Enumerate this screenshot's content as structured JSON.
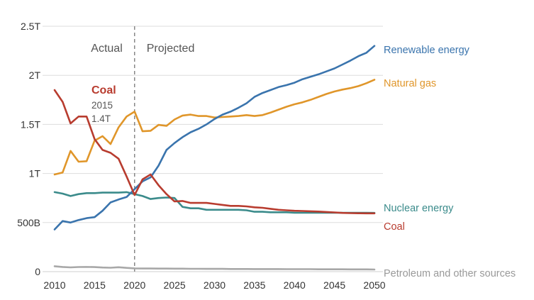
{
  "chart_data": {
    "type": "line",
    "title": "",
    "xlabel": "",
    "ylabel": "",
    "xlim": [
      2010,
      2050
    ],
    "ylim": [
      0,
      2500000000000
    ],
    "x_ticks": [
      2010,
      2015,
      2020,
      2025,
      2030,
      2035,
      2040,
      2045,
      2050
    ],
    "x_tick_labels": [
      "2010",
      "2015",
      "2020",
      "2025",
      "2030",
      "2035",
      "2040",
      "2045",
      "2050"
    ],
    "y_ticks": [
      0,
      500000000000,
      1000000000000,
      1500000000000,
      2000000000000,
      2500000000000
    ],
    "y_tick_labels": [
      "0",
      "500B",
      "1T",
      "1.5T",
      "2T",
      "2.5T"
    ],
    "grid": "horizontal",
    "legend": "direct labels at line ends (right)",
    "divider": {
      "x": 2020,
      "left_label": "Actual",
      "right_label": "Projected"
    },
    "annotation": {
      "series": "Coal",
      "title": "Coal",
      "year": "2015",
      "value": "1.4T",
      "x": 2015
    },
    "series": [
      {
        "name": "Renewable energy",
        "color": "#3a74ad",
        "x": [
          2010,
          2011,
          2012,
          2013,
          2014,
          2015,
          2016,
          2017,
          2018,
          2019,
          2020,
          2021,
          2022,
          2023,
          2024,
          2025,
          2026,
          2027,
          2028,
          2029,
          2030,
          2031,
          2032,
          2033,
          2034,
          2035,
          2036,
          2037,
          2038,
          2039,
          2040,
          2041,
          2042,
          2043,
          2044,
          2045,
          2046,
          2047,
          2048,
          2049,
          2050
        ],
        "values": [
          430000000000,
          515000000000,
          500000000000,
          525000000000,
          545000000000,
          555000000000,
          620000000000,
          705000000000,
          735000000000,
          760000000000,
          840000000000,
          920000000000,
          960000000000,
          1080000000000,
          1240000000000,
          1310000000000,
          1370000000000,
          1420000000000,
          1455000000000,
          1500000000000,
          1555000000000,
          1600000000000,
          1630000000000,
          1670000000000,
          1715000000000,
          1780000000000,
          1820000000000,
          1850000000000,
          1880000000000,
          1900000000000,
          1925000000000,
          1960000000000,
          1985000000000,
          2010000000000,
          2040000000000,
          2070000000000,
          2110000000000,
          2150000000000,
          2195000000000,
          2230000000000,
          2300000000000
        ]
      },
      {
        "name": "Natural gas",
        "color": "#e0962a",
        "x": [
          2010,
          2011,
          2012,
          2013,
          2014,
          2015,
          2016,
          2017,
          2018,
          2019,
          2020,
          2021,
          2022,
          2023,
          2024,
          2025,
          2026,
          2027,
          2028,
          2029,
          2030,
          2031,
          2032,
          2033,
          2034,
          2035,
          2036,
          2037,
          2038,
          2039,
          2040,
          2041,
          2042,
          2043,
          2044,
          2045,
          2046,
          2047,
          2048,
          2049,
          2050
        ],
        "values": [
          990000000000,
          1010000000000,
          1230000000000,
          1120000000000,
          1125000000000,
          1335000000000,
          1380000000000,
          1300000000000,
          1470000000000,
          1580000000000,
          1630000000000,
          1430000000000,
          1435000000000,
          1495000000000,
          1485000000000,
          1550000000000,
          1590000000000,
          1600000000000,
          1585000000000,
          1585000000000,
          1570000000000,
          1575000000000,
          1580000000000,
          1585000000000,
          1595000000000,
          1585000000000,
          1595000000000,
          1620000000000,
          1650000000000,
          1680000000000,
          1705000000000,
          1725000000000,
          1750000000000,
          1780000000000,
          1810000000000,
          1835000000000,
          1855000000000,
          1870000000000,
          1890000000000,
          1920000000000,
          1955000000000
        ]
      },
      {
        "name": "Nuclear energy",
        "color": "#3b8b8b",
        "x": [
          2010,
          2011,
          2012,
          2013,
          2014,
          2015,
          2016,
          2017,
          2018,
          2019,
          2020,
          2021,
          2022,
          2023,
          2024,
          2025,
          2026,
          2027,
          2028,
          2029,
          2030,
          2031,
          2032,
          2033,
          2034,
          2035,
          2036,
          2037,
          2038,
          2039,
          2040,
          2041,
          2042,
          2043,
          2044,
          2045,
          2046,
          2047,
          2048,
          2049,
          2050
        ],
        "values": [
          810000000000,
          795000000000,
          770000000000,
          790000000000,
          800000000000,
          800000000000,
          805000000000,
          805000000000,
          805000000000,
          810000000000,
          790000000000,
          770000000000,
          740000000000,
          750000000000,
          755000000000,
          750000000000,
          660000000000,
          645000000000,
          645000000000,
          630000000000,
          630000000000,
          630000000000,
          630000000000,
          630000000000,
          625000000000,
          610000000000,
          610000000000,
          605000000000,
          605000000000,
          605000000000,
          600000000000,
          600000000000,
          600000000000,
          600000000000,
          600000000000,
          600000000000,
          600000000000,
          600000000000,
          600000000000,
          600000000000,
          598000000000
        ]
      },
      {
        "name": "Coal",
        "color": "#b83c2f",
        "x": [
          2010,
          2011,
          2012,
          2013,
          2014,
          2015,
          2016,
          2017,
          2018,
          2019,
          2020,
          2021,
          2022,
          2023,
          2024,
          2025,
          2026,
          2027,
          2028,
          2029,
          2030,
          2031,
          2032,
          2033,
          2034,
          2035,
          2036,
          2037,
          2038,
          2039,
          2040,
          2041,
          2042,
          2043,
          2044,
          2045,
          2046,
          2047,
          2048,
          2049,
          2050
        ],
        "values": [
          1850000000000,
          1730000000000,
          1510000000000,
          1580000000000,
          1580000000000,
          1350000000000,
          1240000000000,
          1210000000000,
          1150000000000,
          970000000000,
          780000000000,
          940000000000,
          990000000000,
          880000000000,
          790000000000,
          715000000000,
          720000000000,
          700000000000,
          700000000000,
          700000000000,
          690000000000,
          680000000000,
          670000000000,
          670000000000,
          665000000000,
          655000000000,
          650000000000,
          640000000000,
          630000000000,
          625000000000,
          620000000000,
          618000000000,
          615000000000,
          612000000000,
          608000000000,
          603000000000,
          598000000000,
          596000000000,
          595000000000,
          594000000000,
          594000000000
        ]
      },
      {
        "name": "Petroleum and other sources",
        "color": "#a8a8a8",
        "x": [
          2010,
          2011,
          2012,
          2013,
          2014,
          2015,
          2016,
          2017,
          2018,
          2019,
          2020,
          2021,
          2022,
          2023,
          2024,
          2025,
          2026,
          2027,
          2028,
          2029,
          2030,
          2031,
          2032,
          2033,
          2034,
          2035,
          2036,
          2037,
          2038,
          2039,
          2040,
          2041,
          2042,
          2043,
          2044,
          2045,
          2046,
          2047,
          2048,
          2049,
          2050
        ],
        "values": [
          55000000000,
          48000000000,
          43000000000,
          47000000000,
          48000000000,
          46000000000,
          42000000000,
          40000000000,
          45000000000,
          38000000000,
          33000000000,
          32000000000,
          32000000000,
          31000000000,
          31000000000,
          30000000000,
          30000000000,
          29000000000,
          29000000000,
          28000000000,
          28000000000,
          28000000000,
          27000000000,
          27000000000,
          27000000000,
          26000000000,
          26000000000,
          26000000000,
          26000000000,
          25000000000,
          25000000000,
          25000000000,
          25000000000,
          24000000000,
          24000000000,
          24000000000,
          24000000000,
          23000000000,
          23000000000,
          23000000000,
          22000000000
        ]
      }
    ]
  }
}
